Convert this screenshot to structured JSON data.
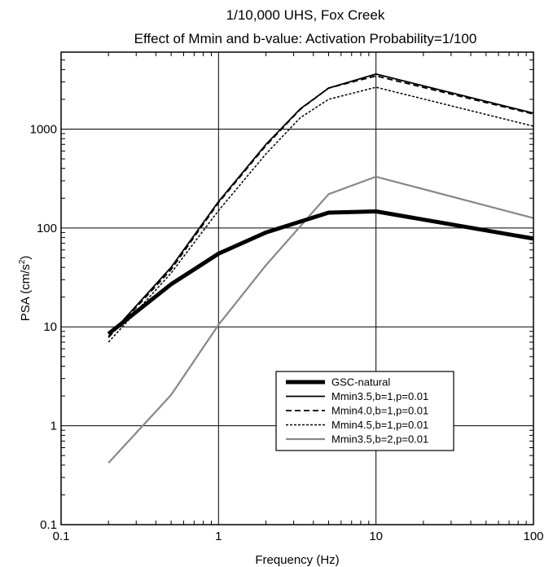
{
  "chart_data": {
    "type": "line",
    "title": "1/10,000 UHS, Fox Creek",
    "subtitle": "Effect of Mmin and b-value: Activation Probability=1/100",
    "xlabel": "Frequency (Hz)",
    "ylabel_main": "PSA (cm/s",
    "ylabel_sup": "2",
    "ylabel_end": ")",
    "xscale": "log",
    "yscale": "log",
    "xlim": [
      0.1,
      100
    ],
    "ylim": [
      0.1,
      6000
    ],
    "grid": true,
    "legend_position": "lower-right",
    "x_ticks": [
      {
        "value": 0.1,
        "label": "0.1"
      },
      {
        "value": 1,
        "label": "1"
      },
      {
        "value": 10,
        "label": "10"
      },
      {
        "value": 100,
        "label": "100"
      }
    ],
    "y_ticks": [
      {
        "value": 0.1,
        "label": "0.1"
      },
      {
        "value": 1,
        "label": "1"
      },
      {
        "value": 10,
        "label": "10"
      },
      {
        "value": 100,
        "label": "100"
      },
      {
        "value": 1000,
        "label": "1000"
      }
    ],
    "series": [
      {
        "name": "GSC-natural",
        "color": "#000000",
        "style": "thick-solid",
        "x": [
          0.2,
          0.5,
          1,
          2,
          5,
          10,
          100
        ],
        "y": [
          8.5,
          27,
          55,
          90,
          143,
          147,
          78
        ]
      },
      {
        "name": "Mmin3.5,b=1,p=0.01",
        "color": "#000000",
        "style": "solid",
        "x": [
          0.2,
          0.5,
          1,
          2,
          3.3,
          5,
          10,
          100
        ],
        "y": [
          8,
          40,
          185,
          700,
          1600,
          2600,
          3600,
          1450
        ]
      },
      {
        "name": "Mmin4.0,b=1,p=0.01",
        "color": "#000000",
        "style": "dashed",
        "x": [
          0.2,
          0.5,
          1,
          2,
          3.3,
          5,
          10,
          100
        ],
        "y": [
          7.8,
          38,
          180,
          680,
          1580,
          2600,
          3450,
          1420
        ]
      },
      {
        "name": "Mmin4.5,b=1,p=0.01",
        "color": "#000000",
        "style": "dotted",
        "x": [
          0.2,
          0.5,
          1,
          2,
          3.3,
          5,
          10,
          100
        ],
        "y": [
          7,
          35,
          150,
          560,
          1300,
          2000,
          2650,
          1070
        ]
      },
      {
        "name": "Mmin3.5,b=2,p=0.01",
        "color": "#888888",
        "style": "gray-solid",
        "x": [
          0.2,
          0.5,
          1,
          2,
          5,
          10,
          100
        ],
        "y": [
          0.42,
          2.05,
          10.5,
          42,
          220,
          330,
          126
        ]
      }
    ]
  }
}
